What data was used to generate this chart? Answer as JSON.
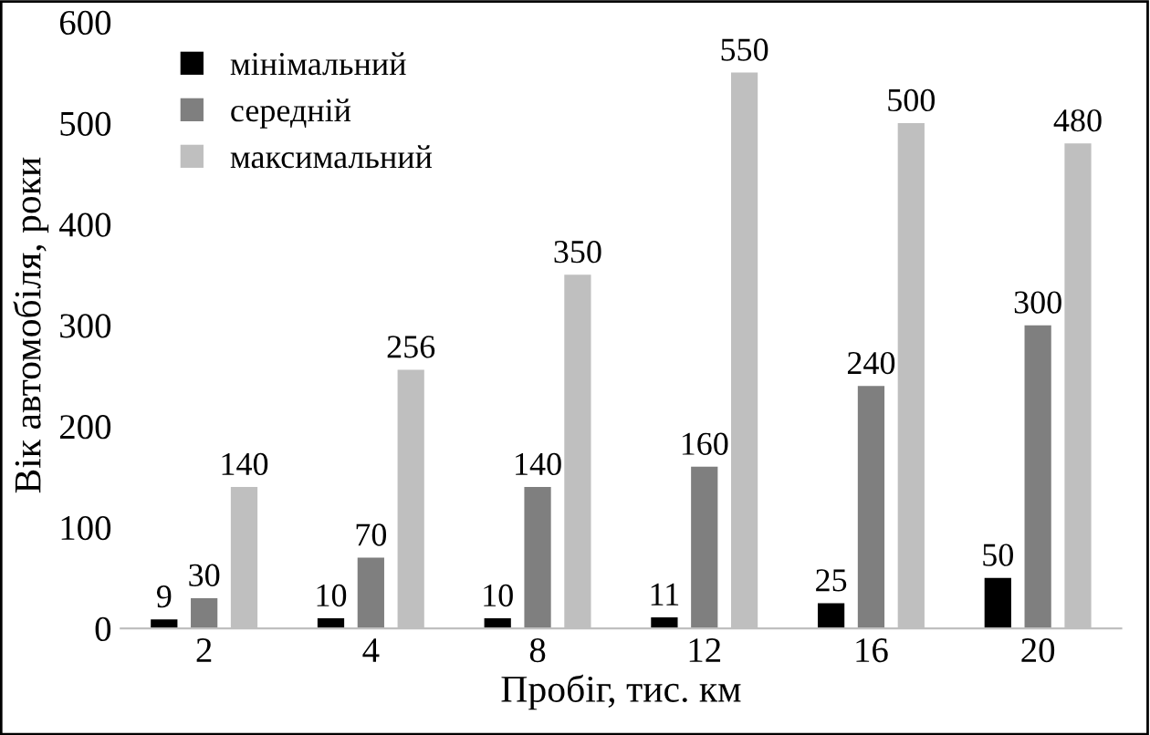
{
  "chart_data": {
    "type": "bar",
    "xlabel": "Пробіг, тис. км",
    "ylabel": "Вік автомобіля, роки",
    "categories": [
      "2",
      "4",
      "8",
      "12",
      "16",
      "20"
    ],
    "series": [
      {
        "name": "мінімальний",
        "color": "#000000",
        "values": [
          9,
          10,
          10,
          11,
          25,
          50
        ]
      },
      {
        "name": "середній",
        "color": "#7f7f7f",
        "values": [
          30,
          70,
          140,
          160,
          240,
          300
        ]
      },
      {
        "name": "максимальний",
        "color": "#bfbfbf",
        "values": [
          140,
          256,
          350,
          550,
          500,
          480
        ]
      }
    ],
    "ylim": [
      0,
      600
    ],
    "yticks": [
      0,
      100,
      200,
      300,
      400,
      500,
      600
    ],
    "grid": false,
    "legend": "top left",
    "data_labels": true
  }
}
